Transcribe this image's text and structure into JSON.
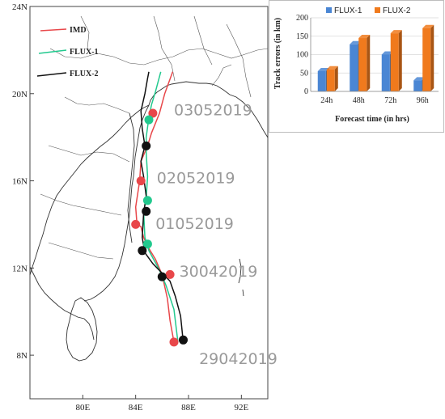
{
  "map": {
    "lat_ticks": [
      {
        "value": 8,
        "label": "8N"
      },
      {
        "value": 12,
        "label": "12N"
      },
      {
        "value": 16,
        "label": "16N"
      },
      {
        "value": 20,
        "label": "20N"
      },
      {
        "value": 24,
        "label": "24N"
      }
    ],
    "lon_ticks": [
      {
        "value": 80,
        "label": "80E"
      },
      {
        "value": 84,
        "label": "84E"
      },
      {
        "value": 88,
        "label": "88E"
      },
      {
        "value": 92,
        "label": "92E"
      }
    ],
    "lon_range": [
      76,
      94
    ],
    "lat_range": [
      6,
      24
    ],
    "legend": [
      {
        "name": "IMD",
        "color": "#e8474a"
      },
      {
        "name": "FLUX-1",
        "color": "#22c98e"
      },
      {
        "name": "FLUX-2",
        "color": "#111111"
      }
    ],
    "date_labels": [
      {
        "text": "03052019",
        "lon": 86.9,
        "lat": 19.0
      },
      {
        "text": "02052019",
        "lon": 85.6,
        "lat": 15.9
      },
      {
        "text": "01052019",
        "lon": 85.5,
        "lat": 13.8
      },
      {
        "text": "30042019",
        "lon": 87.3,
        "lat": 11.6
      },
      {
        "text": "29042019",
        "lon": 88.8,
        "lat": 7.6
      }
    ],
    "tracks": {
      "IMD": {
        "color": "#e8474a",
        "lon": [
          86.9,
          86.6,
          86.4,
          86.0,
          85.5,
          85.0,
          84.6,
          84.4,
          84.1,
          84.0,
          84.3,
          84.4,
          84.9,
          85.2,
          85.8,
          86.2,
          86.8
        ],
        "lat": [
          8.6,
          9.6,
          10.6,
          11.7,
          12.4,
          12.9,
          13.4,
          13.9,
          14.0,
          14.8,
          16.0,
          16.9,
          17.6,
          18.2,
          19.1,
          20.0,
          21.0
        ],
        "markers": [
          [
            86.9,
            8.6
          ],
          [
            86.6,
            11.7
          ],
          [
            84.0,
            14.0
          ],
          [
            84.4,
            16.0
          ],
          [
            85.3,
            19.1
          ]
        ]
      },
      "FLUX-1": {
        "color": "#22c98e",
        "lon": [
          87.2,
          86.9,
          86.3,
          85.8,
          85.0,
          84.7,
          84.6,
          84.8,
          84.9,
          84.8,
          84.8,
          85.0,
          85.2,
          85.5,
          85.9
        ],
        "lat": [
          8.6,
          10.1,
          11.2,
          11.9,
          12.8,
          13.4,
          14.6,
          15.2,
          16.2,
          17.3,
          18.0,
          18.9,
          19.5,
          20.1,
          21.0
        ],
        "markers": [
          [
            84.9,
            13.1
          ],
          [
            84.9,
            15.1
          ],
          [
            85.0,
            18.8
          ]
        ]
      },
      "FLUX-2": {
        "color": "#111111",
        "lon": [
          87.6,
          87.4,
          87.0,
          86.6,
          86.1,
          85.3,
          84.7,
          84.5,
          84.6,
          84.8,
          84.6,
          84.4,
          84.7,
          84.5,
          84.4,
          84.7,
          84.9,
          85.0
        ],
        "lat": [
          8.6,
          9.8,
          10.7,
          11.4,
          11.7,
          12.2,
          12.7,
          13.4,
          14.5,
          15.3,
          16.2,
          16.9,
          17.6,
          18.4,
          19.2,
          20.0,
          20.7,
          21.0
        ],
        "markers": [
          [
            87.6,
            8.7
          ],
          [
            86.0,
            11.6
          ],
          [
            84.5,
            12.8
          ],
          [
            84.8,
            14.6
          ],
          [
            84.8,
            17.6
          ]
        ]
      }
    }
  },
  "chart_data": {
    "type": "bar",
    "categories": [
      "24h",
      "48h",
      "72h",
      "96h"
    ],
    "series": [
      {
        "name": "FLUX-1",
        "color": "#4a86d4",
        "values": [
          55,
          128,
          100,
          30
        ]
      },
      {
        "name": "FLUX-2",
        "color": "#f07a1d",
        "values": [
          60,
          145,
          158,
          172
        ]
      }
    ],
    "xlabel": "Forecast time (in hrs)",
    "ylabel": "Track errors (in km)",
    "ylim": [
      0,
      200
    ],
    "yticks": [
      0,
      50,
      100,
      150,
      200
    ],
    "legend_position": "top"
  }
}
